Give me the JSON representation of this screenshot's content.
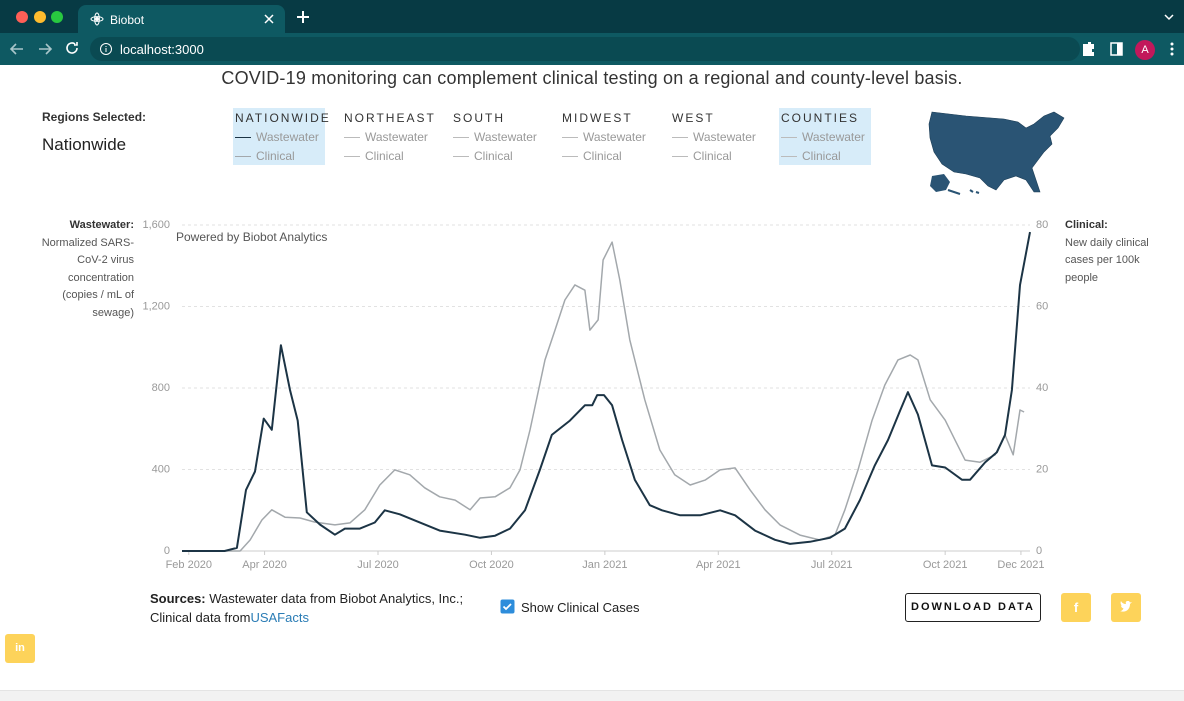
{
  "browser": {
    "tab_title": "Biobot",
    "url": "localhost:3000",
    "profile": "A"
  },
  "header": {
    "subtitle": "COVID-19 monitoring can complement clinical testing on a regional and county-level basis.",
    "regions_label": "Regions Selected:",
    "selected_region": "Nationwide"
  },
  "regions": [
    {
      "name": "NATIONWIDE",
      "selected": true
    },
    {
      "name": "NORTHEAST",
      "selected": false,
      "items": [
        "Wastewater",
        "Clinical"
      ]
    },
    {
      "name": "SOUTH",
      "selected": false,
      "items": [
        "Wastewater",
        "Clinical"
      ]
    },
    {
      "name": "MIDWEST",
      "selected": false,
      "items": [
        "Wastewater",
        "Clinical"
      ]
    },
    {
      "name": "WEST",
      "selected": false,
      "items": [
        "Wastewater",
        "Clinical"
      ]
    },
    {
      "name": "COUNTIES",
      "selected": true,
      "items": [
        "Wastewater",
        "Clinical"
      ]
    }
  ],
  "chart_data": {
    "type": "line",
    "annotation": "Powered by Biobot Analytics",
    "ylabel_title": "Wastewater:",
    "ylabel": "Normalized SARS-CoV-2 virus concentration (copies / mL of sewage)",
    "y2label_title": "Clinical:",
    "y2label": "New daily clinical cases per 100k people",
    "grid": true,
    "xlim": [
      2020.068,
      2021.937
    ],
    "xticks": [
      {
        "value": 2020.083,
        "label": "Feb 2020"
      },
      {
        "value": 2020.25,
        "label": "Apr 2020"
      },
      {
        "value": 2020.5,
        "label": "Jul 2020"
      },
      {
        "value": 2020.75,
        "label": "Oct 2020"
      },
      {
        "value": 2021.0,
        "label": "Jan 2021"
      },
      {
        "value": 2021.25,
        "label": "Apr 2021"
      },
      {
        "value": 2021.5,
        "label": "Jul 2021"
      },
      {
        "value": 2021.75,
        "label": "Oct 2021"
      },
      {
        "value": 2021.917,
        "label": "Dec 2021"
      }
    ],
    "ylim": [
      0,
      1600
    ],
    "yticks": [
      0,
      400,
      800,
      {
        "value": 1200,
        "label": "1,200"
      },
      {
        "value": 1600,
        "label": "1,600"
      }
    ],
    "y2lim": [
      0,
      80
    ],
    "y2ticks": [
      0,
      20,
      40,
      60,
      80
    ],
    "series": [
      {
        "name": "Wastewater",
        "color": "#1c3445",
        "axis": "y",
        "x": [
          2020.068,
          2020.162,
          2020.189,
          2020.209,
          2020.229,
          2020.248,
          2020.266,
          2020.286,
          2020.306,
          2020.323,
          2020.343,
          2020.372,
          2020.405,
          2020.427,
          2020.46,
          2020.493,
          2020.515,
          2020.548,
          2020.581,
          2020.636,
          2020.692,
          2020.725,
          2020.758,
          2020.791,
          2020.824,
          2020.857,
          2020.883,
          2020.923,
          2020.956,
          2020.972,
          2020.983,
          2020.998,
          2021.016,
          2021.038,
          2021.066,
          2021.099,
          2021.126,
          2021.166,
          2021.21,
          2021.254,
          2021.287,
          2021.331,
          2021.375,
          2021.408,
          2021.452,
          2021.496,
          2021.529,
          2021.562,
          2021.595,
          2021.624,
          2021.651,
          2021.668,
          2021.69,
          2021.721,
          2021.75,
          2021.787,
          2021.805,
          2021.838,
          2021.864,
          2021.882,
          2021.897,
          2021.915,
          2021.937
        ],
        "values": [
          0,
          0,
          15,
          300,
          390,
          650,
          595,
          1010,
          790,
          640,
          190,
          130,
          80,
          110,
          110,
          140,
          200,
          180,
          150,
          100,
          80,
          65,
          75,
          110,
          200,
          400,
          570,
          640,
          715,
          715,
          765,
          765,
          715,
          545,
          350,
          225,
          200,
          175,
          175,
          200,
          175,
          100,
          55,
          35,
          45,
          65,
          110,
          250,
          420,
          545,
          690,
          780,
          670,
          420,
          410,
          350,
          350,
          435,
          485,
          570,
          790,
          1305,
          1565
        ]
      },
      {
        "name": "Clinical",
        "color": "#a3a8ac",
        "axis": "y2",
        "x": [
          2020.068,
          2020.196,
          2020.218,
          2020.244,
          2020.266,
          2020.295,
          2020.328,
          2020.361,
          2020.405,
          2020.438,
          2020.471,
          2020.504,
          2020.537,
          2020.57,
          2020.603,
          2020.636,
          2020.67,
          2020.703,
          2020.725,
          2020.758,
          2020.791,
          2020.813,
          2020.835,
          2020.868,
          2020.89,
          2020.912,
          2020.934,
          2020.956,
          2020.967,
          2020.985,
          2020.996,
          2021.016,
          2021.033,
          2021.055,
          2021.088,
          2021.121,
          2021.154,
          2021.188,
          2021.221,
          2021.254,
          2021.287,
          2021.32,
          2021.353,
          2021.386,
          2021.43,
          2021.474,
          2021.507,
          2021.529,
          2021.558,
          2021.589,
          2021.617,
          2021.646,
          2021.673,
          2021.69,
          2021.717,
          2021.75,
          2021.772,
          2021.794,
          2021.827,
          2021.86,
          2021.882,
          2021.9,
          2021.915,
          2021.924
        ],
        "values": [
          0,
          0,
          2.7,
          7.6,
          10.1,
          8.3,
          8.1,
          7.1,
          6.4,
          6.9,
          10.1,
          16.2,
          19.9,
          18.7,
          15.5,
          13.3,
          12.5,
          10.1,
          13.0,
          13.3,
          15.5,
          19.9,
          29.7,
          46.9,
          54.2,
          61.6,
          65.3,
          64.0,
          54.2,
          56.7,
          71.4,
          75.8,
          66.5,
          51.8,
          37.1,
          24.8,
          18.7,
          16.2,
          17.4,
          19.9,
          20.4,
          15.0,
          10.1,
          6.4,
          3.9,
          2.7,
          3.9,
          10.1,
          19.9,
          32.1,
          40.7,
          46.9,
          48.1,
          46.9,
          37.1,
          32.1,
          27.2,
          22.3,
          21.8,
          23.6,
          28.5,
          23.6,
          34.6,
          34.1
        ]
      }
    ]
  },
  "footer": {
    "sources_label": "Sources:",
    "sources_text": "Wastewater data from Biobot Analytics, Inc.;",
    "clinical_text": "Clinical data from",
    "link": "USAFacts",
    "checkbox": "Show Clinical Cases",
    "button": "DOWNLOAD DATA",
    "facebook": "f",
    "linkedin": "in"
  }
}
